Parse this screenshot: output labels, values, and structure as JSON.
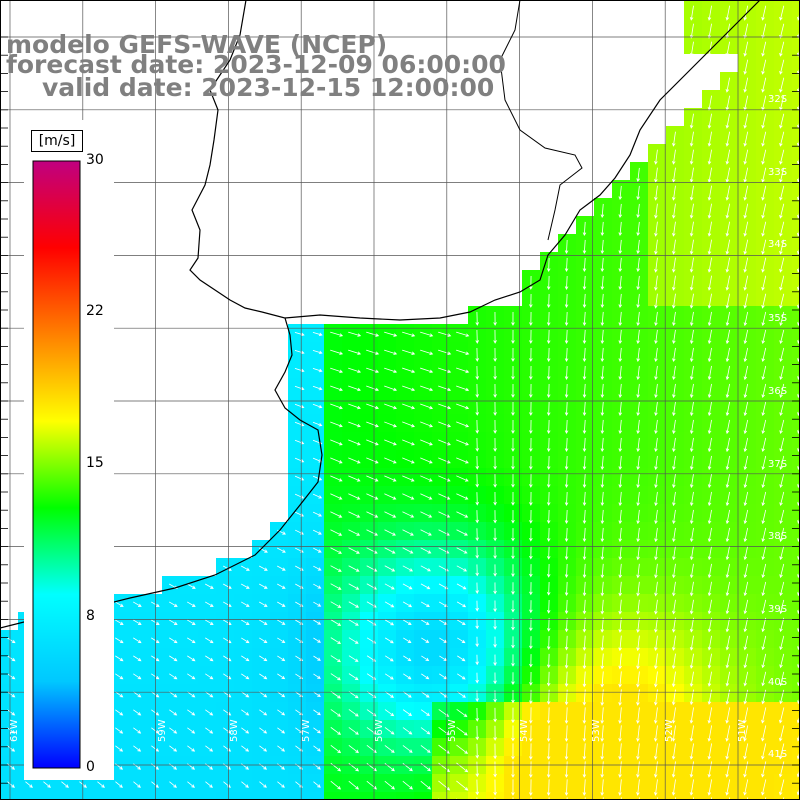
{
  "title": {
    "line1": "modelo GEFS-WAVE (NCEP)",
    "line2": "forecast date: 2023-12-09 06:00:00",
    "line3": "valid date: 2023-12-15 12:00:00"
  },
  "colorbar": {
    "unit": "[m/s]",
    "ticks": [
      "30",
      "22",
      "15",
      "8",
      "0"
    ],
    "min": 0,
    "max": 30,
    "colors": [
      "#0000ff",
      "#00c8ff",
      "#00ffff",
      "#00ff00",
      "#ffff00",
      "#ff8000",
      "#ff0000",
      "#c00080"
    ]
  },
  "grid": {
    "lat_labels": [
      "32S",
      "33S",
      "34S",
      "35S",
      "36S",
      "37S",
      "38S",
      "39S",
      "40S",
      "41S"
    ],
    "lon_labels": [
      "61W",
      "60W",
      "59W",
      "58W",
      "57W",
      "56W",
      "55W",
      "54W",
      "53W",
      "52W",
      "51W"
    ]
  },
  "field": {
    "variable": "wind speed",
    "vectors": "wind direction arrows"
  }
}
